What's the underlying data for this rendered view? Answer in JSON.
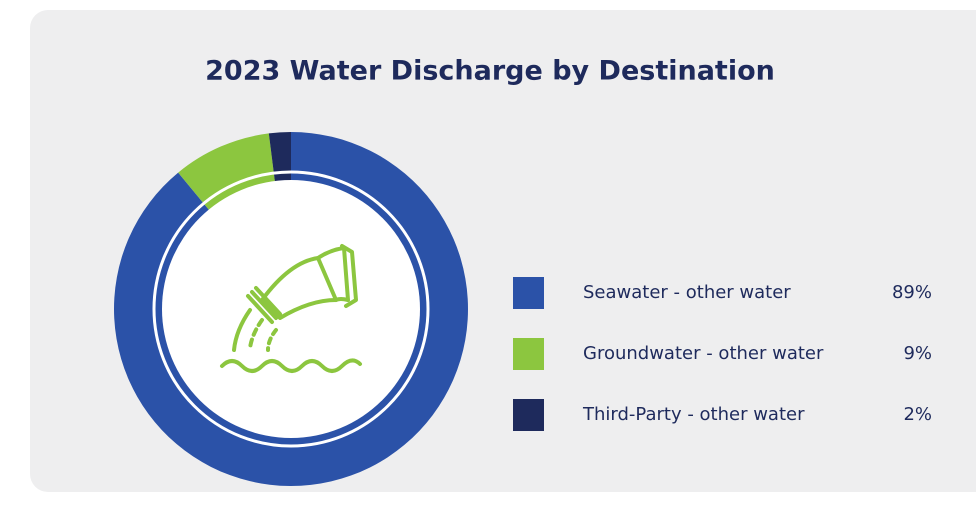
{
  "chart_data": {
    "type": "pie",
    "title": "2023 Water Discharge by Destination",
    "categories": [
      "Seawater - other water",
      "Groundwater - other water",
      "Third-Party - other water"
    ],
    "values": [
      89,
      9,
      2
    ],
    "value_labels": [
      "89%",
      "9%",
      "2%"
    ],
    "colors": [
      "#2b52a8",
      "#8cc63f",
      "#1e2a5c"
    ],
    "legend": "right"
  }
}
